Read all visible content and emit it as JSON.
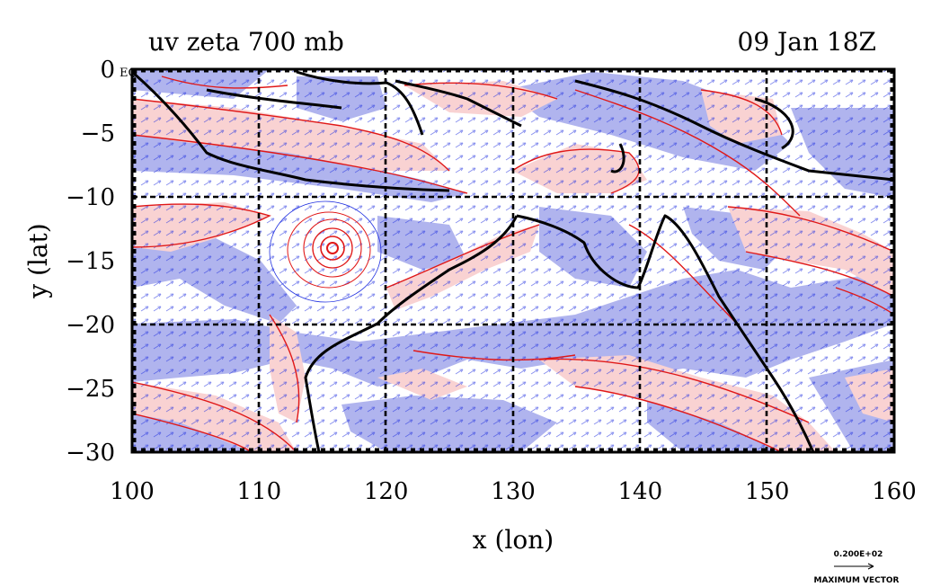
{
  "map": {
    "title_left": "uv zeta 700 mb",
    "title_right": "09 Jan 18Z",
    "xlabel": "x (lon)",
    "ylabel": "y (lat)",
    "eq_label": "EQ",
    "x_ticks": [
      "100",
      "110",
      "120",
      "130",
      "140",
      "150",
      "160"
    ],
    "y_ticks": [
      "0",
      "−5",
      "−10",
      "−15",
      "−20",
      "−25",
      "−30"
    ],
    "legend": {
      "value": "0.200E+02",
      "label": "MAXIMUM VECTOR"
    },
    "colors": {
      "negative_vorticity_fill": "#b0b4ee",
      "positive_vorticity_fill": "#f9d2d2",
      "vorticity_contour": "#e01818",
      "wind_vectors": "#1f2fe0",
      "coastline": "#000000"
    }
  },
  "chart_data": {
    "type": "map",
    "variables": [
      "u",
      "v",
      "zeta"
    ],
    "level": "700 mb",
    "time": "09 Jan 18Z",
    "xlim": [
      100,
      160
    ],
    "ylim": [
      -30,
      0
    ],
    "grid": true,
    "x_ticks": [
      100,
      110,
      120,
      130,
      140,
      150,
      160
    ],
    "y_ticks": [
      0,
      -5,
      -10,
      -15,
      -20,
      -25,
      -30
    ],
    "features": [
      {
        "name": "cyclonic vortex",
        "lon": 115.5,
        "lat": -14.0
      }
    ]
  }
}
